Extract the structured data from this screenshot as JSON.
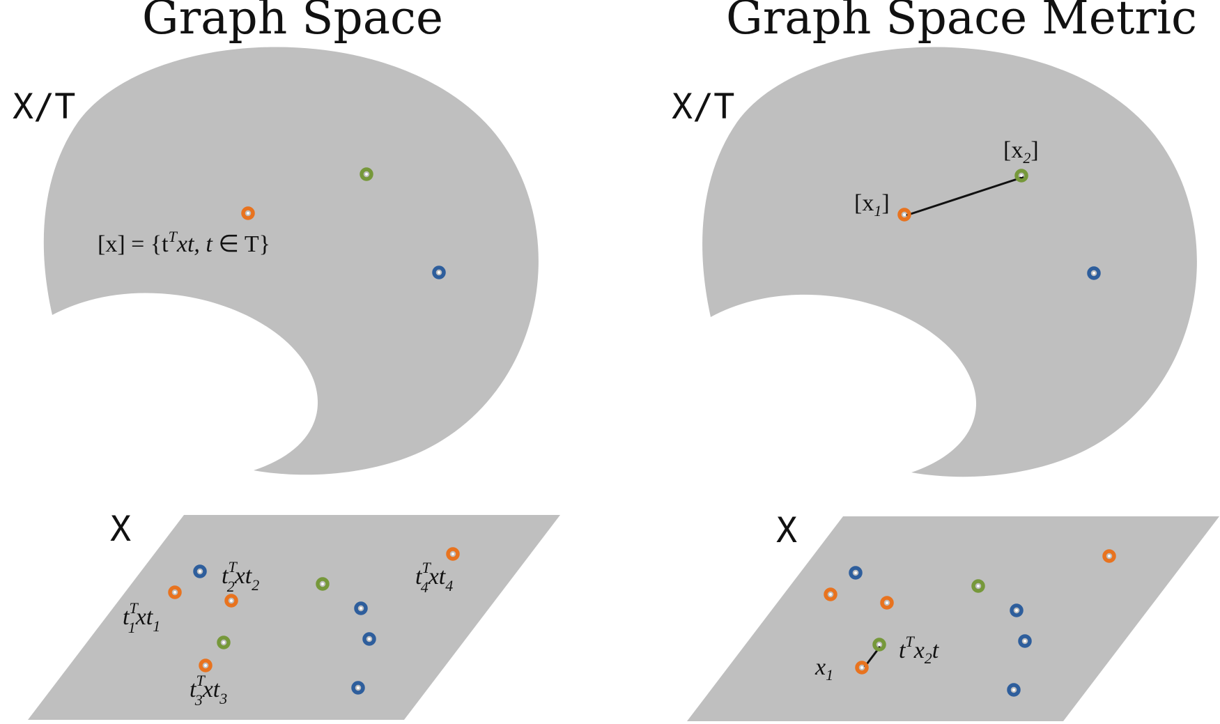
{
  "colors": {
    "orange": "#E8731F",
    "green": "#76983A",
    "blue": "#2E5E9C",
    "region": "#BFBFBF"
  },
  "left_panel": {
    "title": "Graph Space",
    "quotient_label": "X/T",
    "space_label": "X",
    "equivalence_class": {
      "lhs": "[x]",
      "rhs_open": " = {t",
      "rhs_sup": "T",
      "rhs_mid": "xt, t ",
      "elem": "∈",
      "rhs_end": " T}"
    },
    "permutation_labels": [
      {
        "base": "t",
        "sub": "1",
        "sup": "T",
        "rest": "xt",
        "rest_sub": "1"
      },
      {
        "base": "t",
        "sub": "2",
        "sup": "T",
        "rest": "xt",
        "rest_sub": "2"
      },
      {
        "base": "t",
        "sub": "3",
        "sup": "T",
        "rest": "xt",
        "rest_sub": "3"
      },
      {
        "base": "t",
        "sub": "4",
        "sup": "T",
        "rest": "xt",
        "rest_sub": "4"
      }
    ]
  },
  "right_panel": {
    "title": "Graph Space Metric",
    "quotient_label": "X/T",
    "space_label": "X",
    "class_labels": [
      {
        "open": "[x",
        "sub": "1",
        "close": "]"
      },
      {
        "open": "[x",
        "sub": "2",
        "close": "]"
      }
    ],
    "x1_label": {
      "base": "x",
      "sub": "1"
    },
    "aligned_label": {
      "base": "t",
      "sup": "T",
      "mid": "x",
      "sub": "2",
      "end": "t"
    }
  }
}
